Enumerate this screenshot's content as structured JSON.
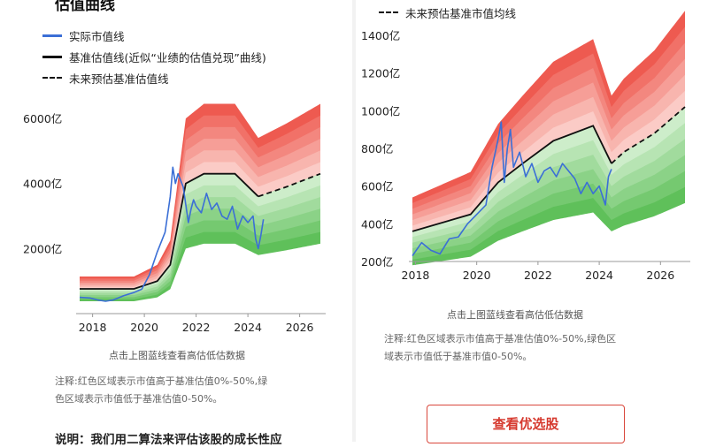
{
  "left": {
    "title": "估值曲线",
    "legend": [
      {
        "label": "实际市值线",
        "color": "#3b6fd6",
        "style": "solid"
      },
      {
        "label": "基准估值线(近似“业绩的估值兑现”曲线)",
        "color": "#111111",
        "style": "solid"
      },
      {
        "label": "未来预估基准估值线",
        "color": "#111111",
        "style": "dashed"
      }
    ],
    "hint": "点击上图蓝线查看高估低估数据",
    "note": [
      "注释:红色区域表示市值高于基准估值0%-50%,绿",
      "色区域表示市值低于基准估值0-50%。"
    ],
    "footer_cut": "说明：我们用二算法来评估该股的成长性应"
  },
  "right": {
    "legend": [
      {
        "label": "未来预估基准市值均线",
        "color": "#111111",
        "style": "dashed"
      }
    ],
    "hint": "点击上图蓝线查看高估低估数据",
    "note": [
      "注释:红色区域表示市值高于基准估值0%-50%,绿色区",
      "域表示市值低于基准市值0-50%。"
    ],
    "button_label": "查看优选股"
  },
  "chart_data": [
    {
      "type": "line",
      "title": "估值曲线",
      "ylim": [
        0,
        6600
      ],
      "xlim": [
        2017.5,
        2026.8
      ],
      "y_ticks": [
        {
          "value": 2000,
          "label": "2000亿"
        },
        {
          "value": 4000,
          "label": "4000亿"
        },
        {
          "value": 6000,
          "label": "6000亿"
        }
      ],
      "x_ticks": [
        "2018",
        "2020",
        "2022",
        "2024",
        "2026"
      ],
      "band": "red area 0%-50% above baseline, green area 0-50% below baseline",
      "series": [
        {
          "name": "基准估值线(近似“业绩的估值兑现”曲线)",
          "style": "solid",
          "x": [
            2017.5,
            2019.6,
            2020.5,
            2021.0,
            2021.6,
            2022.3,
            2023.5,
            2024.4
          ],
          "y": [
            760,
            760,
            1000,
            1500,
            4000,
            4300,
            4300,
            3600
          ]
        },
        {
          "name": "未来预估基准估值线",
          "style": "dashed",
          "x": [
            2024.4,
            2025.5,
            2026.8
          ],
          "y": [
            3600,
            3900,
            4300
          ]
        },
        {
          "name": "实际市值线",
          "style": "solid",
          "x": [
            2017.5,
            2017.9,
            2018.2,
            2018.5,
            2018.8,
            2019.2,
            2019.6,
            2019.9,
            2020.2,
            2020.5,
            2020.8,
            2021.0,
            2021.1,
            2021.2,
            2021.3,
            2021.5,
            2021.7,
            2021.8,
            2021.9,
            2022.0,
            2022.2,
            2022.4,
            2022.6,
            2022.8,
            2023.0,
            2023.2,
            2023.4,
            2023.6,
            2023.8,
            2024.0,
            2024.2,
            2024.3,
            2024.4,
            2024.5,
            2024.6
          ],
          "y": [
            500,
            480,
            420,
            380,
            420,
            550,
            650,
            750,
            1200,
            1900,
            2500,
            3600,
            4500,
            4000,
            4300,
            3900,
            2800,
            3200,
            3500,
            3300,
            3100,
            3700,
            3200,
            3400,
            3000,
            2900,
            3300,
            2600,
            3000,
            2800,
            3000,
            2300,
            2000,
            2400,
            2900
          ]
        }
      ]
    },
    {
      "type": "line",
      "ylim": [
        200,
        1400
      ],
      "xlim": [
        2017.9,
        2026.8
      ],
      "y_ticks": [
        {
          "value": 200,
          "label": "200亿"
        },
        {
          "value": 400,
          "label": "400亿"
        },
        {
          "value": 600,
          "label": "600亿"
        },
        {
          "value": 800,
          "label": "800亿"
        },
        {
          "value": 1000,
          "label": "1000亿"
        },
        {
          "value": 1200,
          "label": "1200亿"
        },
        {
          "value": 1400,
          "label": "1400亿"
        }
      ],
      "x_ticks": [
        "2018",
        "2020",
        "2022",
        "2024",
        "2026"
      ],
      "band": "red area 0%-50% above baseline, green area 0-50% below baseline",
      "series": [
        {
          "name": "基准估值线",
          "style": "solid",
          "x": [
            2017.9,
            2019.8,
            2020.7,
            2021.5,
            2022.5,
            2023.8,
            2024.4
          ],
          "y": [
            360,
            450,
            620,
            720,
            840,
            920,
            720
          ]
        },
        {
          "name": "未来预估基准市值均线",
          "style": "dashed",
          "x": [
            2024.4,
            2024.8,
            2025.8,
            2026.8
          ],
          "y": [
            720,
            780,
            880,
            1020
          ]
        },
        {
          "name": "实际市值线",
          "style": "solid",
          "x": [
            2017.9,
            2018.2,
            2018.5,
            2018.8,
            2019.1,
            2019.4,
            2019.7,
            2020.0,
            2020.3,
            2020.5,
            2020.7,
            2020.8,
            2020.9,
            2021.0,
            2021.1,
            2021.2,
            2021.4,
            2021.6,
            2021.8,
            2022.0,
            2022.2,
            2022.4,
            2022.6,
            2022.8,
            2023.0,
            2023.2,
            2023.4,
            2023.6,
            2023.8,
            2024.0,
            2024.2,
            2024.3,
            2024.4
          ],
          "y": [
            230,
            300,
            260,
            240,
            320,
            330,
            400,
            450,
            500,
            700,
            850,
            940,
            620,
            800,
            900,
            700,
            780,
            650,
            720,
            620,
            680,
            700,
            650,
            720,
            680,
            640,
            560,
            620,
            560,
            600,
            500,
            650,
            690
          ]
        }
      ]
    }
  ]
}
